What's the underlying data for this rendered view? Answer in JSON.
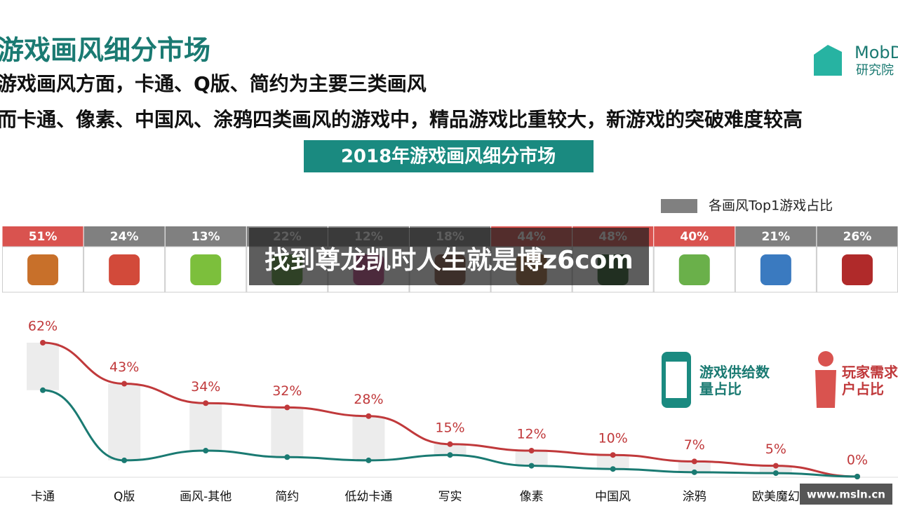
{
  "header": {
    "title": "游戏画风细分市场",
    "line1": "游戏画风方面，卡通、Q版、简约为主要三类画风",
    "line2": "而卡通、像素、中国风、涂鸦四类画风的游戏中，精品游戏比重较大，新游戏的突破难度较高",
    "box": "2018年游戏画风细分市场",
    "logo": "MobD",
    "logo_sub": "研究院"
  },
  "watermark": "找到尊龙凯时人生就是博z6com",
  "footer_site": "www.msln.cn",
  "chart_data": {
    "type": "line",
    "categories": [
      "卡通",
      "Q版",
      "画风-其他",
      "简约",
      "低幼卡通",
      "写实",
      "像素",
      "中国风",
      "涂鸦",
      "欧美魔幻",
      null
    ],
    "series": [
      {
        "name": "玩家需求用户占比",
        "color": "#c0393b",
        "values": [
          62,
          43,
          34,
          32,
          28,
          15,
          12,
          10,
          7,
          5,
          0
        ],
        "value_labels": [
          "62%",
          "43%",
          "34%",
          "32%",
          "28%",
          "15%",
          "12%",
          "10%",
          "7%",
          "5%",
          "0%"
        ]
      },
      {
        "name": "游戏供给数量占比",
        "color": "#1a7a72",
        "values": [
          40,
          7.5,
          12,
          9,
          7.5,
          10,
          5,
          3.5,
          2,
          1.6,
          0
        ]
      }
    ],
    "top1": {
      "legend": "各画风Top1游戏占比",
      "values": [
        51,
        24,
        13,
        22,
        12,
        18,
        44,
        48,
        40,
        21,
        26
      ],
      "value_labels": [
        "51%",
        "24%",
        "13%",
        "22%",
        "12%",
        "18%",
        "44%",
        "48%",
        "40%",
        "21%",
        "26%"
      ],
      "colors": [
        "#d9534f",
        "#808080",
        "#808080",
        "#808080",
        "#808080",
        "#808080",
        "#d9534f",
        "#d9534f",
        "#d9534f",
        "#808080",
        "#808080"
      ]
    }
  }
}
